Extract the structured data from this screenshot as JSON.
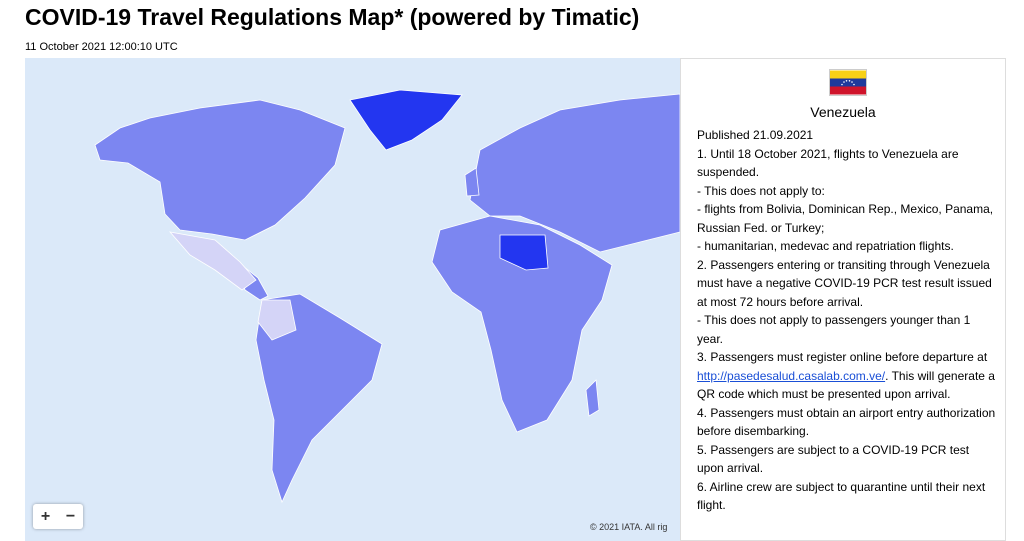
{
  "header": {
    "title": "COVID-19 Travel Regulations Map* (powered by Timatic)",
    "timestamp": "11 October 2021 12:00:10 UTC"
  },
  "map": {
    "zoom_in": "+",
    "zoom_out": "−",
    "attribution": "© 2021 IATA. All rig"
  },
  "panel": {
    "country": "Venezuela",
    "published": "Published 21.09.2021",
    "paragraphs": [
      "1. Until 18 October 2021, flights to Venezuela are suspended.",
      "- This does not apply to:",
      "- flights from Bolivia, Dominican Rep., Mexico, Panama, Russian Fed. or Turkey;",
      "- humanitarian, medevac and repatriation flights.",
      "2. Passengers entering or transiting through Venezuela must have a negative COVID-19 PCR test result issued at most 72 hours before arrival.",
      "- This does not apply to passengers younger than 1 year.",
      {
        "before": "3. Passengers must register online before departure at ",
        "link": "http://pasedesalud.casalab.com.ve/",
        "after": ". This will generate a QR code which must be presented upon arrival."
      },
      "4. Passengers must obtain an airport entry authorization before disembarking.",
      "5. Passengers are subject to a COVID-19 PCR test upon arrival.",
      "6. Airline crew are subject to quarantine until their next flight."
    ]
  }
}
